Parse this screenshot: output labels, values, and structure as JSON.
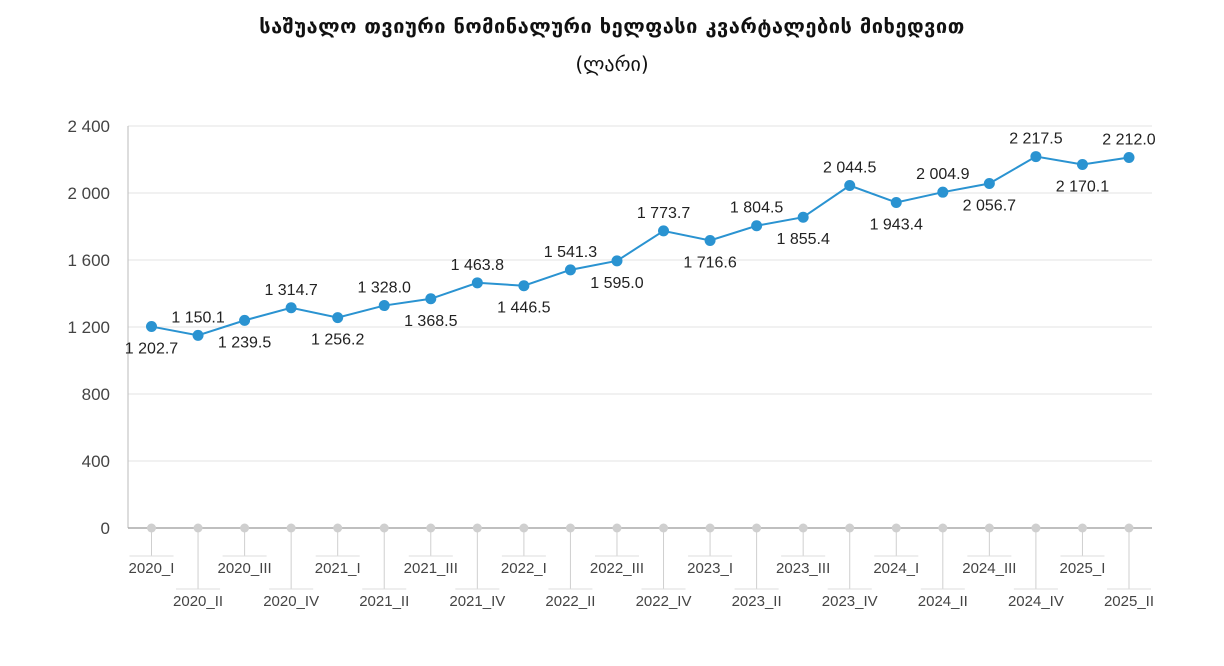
{
  "title": "საშუალო თვიური ნომინალური ხელფასი კვარტალების მიხედვით",
  "subtitle": "(ლარი)",
  "chart_data": {
    "type": "line",
    "title": "საშუალო თვიური ნომინალური ხელფასი კვარტალების მიხედვით",
    "subtitle": "(ლარი)",
    "categories": [
      "2020_I",
      "2020_II",
      "2020_III",
      "2020_IV",
      "2021_I",
      "2021_II",
      "2021_III",
      "2021_IV",
      "2022_I",
      "2022_II",
      "2022_III",
      "2022_IV",
      "2023_I",
      "2023_II",
      "2023_III",
      "2023_IV",
      "2024_I",
      "2024_II",
      "2024_III",
      "2024_IV",
      "2025_I",
      "2025_II"
    ],
    "values": [
      1202.7,
      1150.1,
      1239.5,
      1314.7,
      1256.2,
      1328.0,
      1368.5,
      1463.8,
      1446.5,
      1541.3,
      1595.0,
      1773.7,
      1716.6,
      1804.5,
      1855.4,
      2044.5,
      1943.4,
      2004.9,
      2056.7,
      2217.5,
      2170.1,
      2212.0
    ],
    "data_labels": [
      "1 202.7",
      "1 150.1",
      "1 239.5",
      "1 314.7",
      "1 256.2",
      "1 328.0",
      "1 368.5",
      "1 463.8",
      "1 446.5",
      "1 541.3",
      "1 595.0",
      "1 773.7",
      "1 716.6",
      "1 804.5",
      "1 855.4",
      "2 044.5",
      "1 943.4",
      "2 004.9",
      "2 056.7",
      "2 217.5",
      "2 170.1",
      "2 212.0"
    ],
    "label_position": [
      "below",
      "above",
      "below",
      "above",
      "below",
      "above",
      "below",
      "above",
      "below",
      "above",
      "below",
      "above",
      "below",
      "above",
      "below",
      "above",
      "below",
      "above",
      "below",
      "above",
      "below",
      "above"
    ],
    "yticks": [
      "0",
      "400",
      "800",
      "1 200",
      "1 600",
      "2 000",
      "2 400"
    ],
    "ylim": [
      0,
      2400
    ],
    "grid": true,
    "color": "#2a93d1"
  }
}
